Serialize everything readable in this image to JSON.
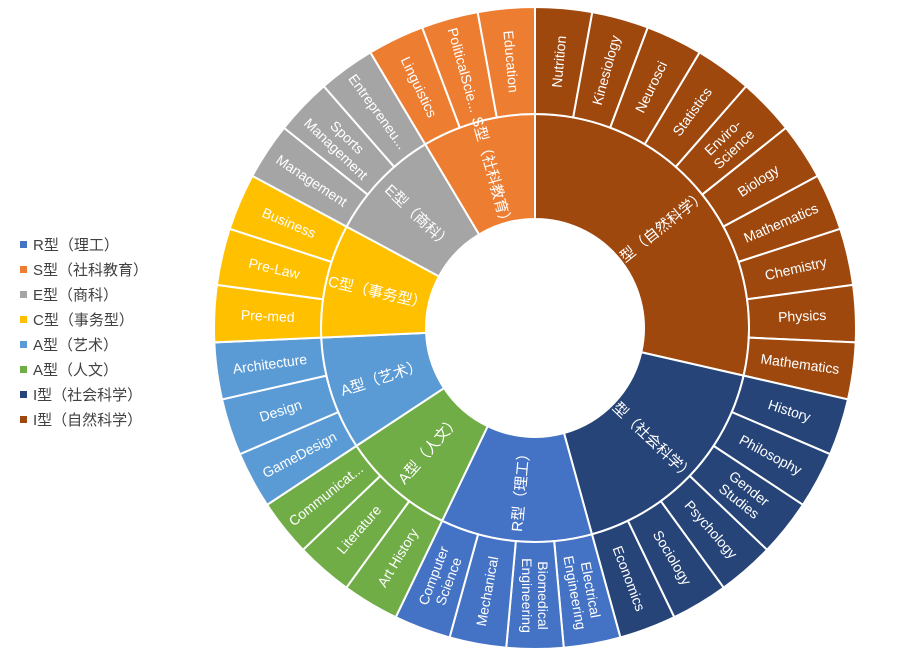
{
  "chart_data": {
    "type": "sunburst",
    "legend": [
      {
        "label": "R型（理工）",
        "color": "#4472c4"
      },
      {
        "label": "S型（社科教育）",
        "color": "#ed7d31"
      },
      {
        "label": "E型（商科）",
        "color": "#a5a5a5"
      },
      {
        "label": "C型（事务型）",
        "color": "#ffc000"
      },
      {
        "label": "A型（艺术）",
        "color": "#5b9bd5"
      },
      {
        "label": "A型（人文）",
        "color": "#70ad47"
      },
      {
        "label": "I型（社会科学）",
        "color": "#264478"
      },
      {
        "label": "I型（自然科学）",
        "color": "#9e480e"
      }
    ],
    "groups": [
      {
        "label": "I型（自然科学）",
        "color": "#9e480e",
        "children": [
          "Nutrition",
          "Kinesiology",
          "Neurosci",
          "Statistics",
          "Enviro-Science",
          "Biology",
          "Mathematics",
          "Chemistry",
          "Physics",
          "Mathematics"
        ]
      },
      {
        "label": "I型（社会科学）",
        "color": "#264478",
        "children": [
          "History",
          "Philosophy",
          "Gender Studies",
          "Psychology",
          "Sociology",
          "Economics"
        ]
      },
      {
        "label": "R型（理工）",
        "color": "#4472c4",
        "children": [
          "Electrical Engineering",
          "Biomedical Engineering",
          "Mechanical",
          "Computer Science"
        ]
      },
      {
        "label": "A型（人文）",
        "color": "#70ad47",
        "children": [
          "Art History",
          "Literature",
          "Communicat..."
        ]
      },
      {
        "label": "A型（艺术）",
        "color": "#5b9bd5",
        "children": [
          "GameDesign",
          "Design",
          "Architecture"
        ]
      },
      {
        "label": "C型（事务型）",
        "color": "#ffc000",
        "children": [
          "Pre-med",
          "Pre-Law",
          "Business"
        ]
      },
      {
        "label": "E型（商科）",
        "color": "#a5a5a5",
        "children": [
          "Management",
          "Sports Management",
          "Entrepreneu..."
        ]
      },
      {
        "label": "S型（社科教育）",
        "color": "#ed7d31",
        "children": [
          "Linguistics",
          "PoliticalScie...",
          "Education"
        ]
      }
    ]
  }
}
